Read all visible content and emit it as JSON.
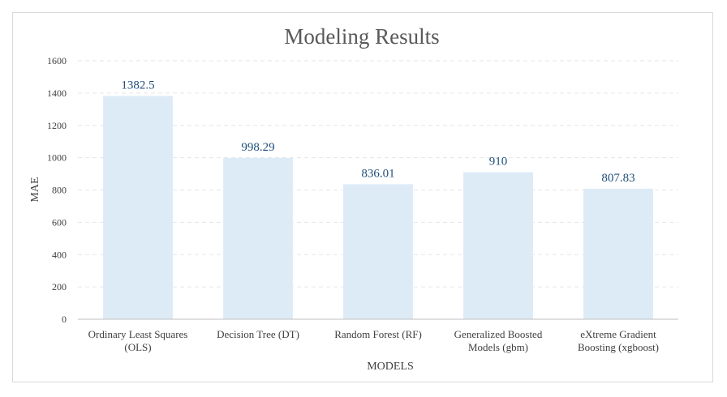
{
  "chart_data": {
    "type": "bar",
    "title": "Modeling Results",
    "xlabel": "MODELS",
    "ylabel": "MAE",
    "ylim": [
      0,
      1600
    ],
    "yticks": [
      0,
      200,
      400,
      600,
      800,
      1000,
      1200,
      1400,
      1600
    ],
    "categories": [
      [
        "Ordinary Least Squares",
        "(OLS)"
      ],
      [
        "Decision Tree (DT)"
      ],
      [
        "Random Forest (RF)"
      ],
      [
        "Generalized Boosted",
        "Models (gbm)"
      ],
      [
        "eXtreme Gradient",
        "Boosting (xgboost)"
      ]
    ],
    "values": [
      1382.5,
      998.29,
      836.01,
      910,
      807.83
    ],
    "data_labels": [
      "1382.5",
      "998.29",
      "836.01",
      "910",
      "807.83"
    ],
    "grid": true,
    "legend": "none",
    "bar_color": "#ddebf7",
    "label_color": "#1f4e79"
  }
}
